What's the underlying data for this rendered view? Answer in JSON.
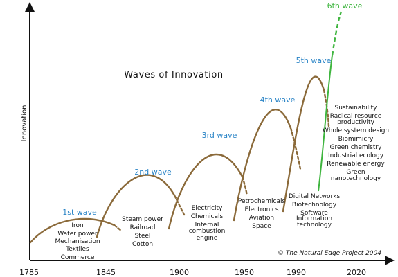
{
  "title": "Waves of Innovation",
  "axis": {
    "y_label": "Innovation",
    "x_ticks": [
      "1785",
      "1845",
      "1900",
      "1950",
      "1990",
      "2020"
    ]
  },
  "colors": {
    "curve": "#8b6a3a",
    "wave_label": "#2a84c6",
    "sixth_wave": "#3fb53f",
    "axis": "#111111"
  },
  "waves": [
    {
      "label": "1st wave",
      "items": [
        "Iron",
        "Water power",
        "Mechanisation",
        "Textiles",
        "Commerce"
      ]
    },
    {
      "label": "2nd wave",
      "items": [
        "Steam power",
        "Railroad",
        "Steel",
        "Cotton"
      ]
    },
    {
      "label": "3rd wave",
      "items": [
        "Electricity",
        "Chemicals",
        "Internal",
        "combustion",
        "engine"
      ]
    },
    {
      "label": "4th wave",
      "items": [
        "Petrochemicals",
        "Electronics",
        "Aviation",
        "Space"
      ]
    },
    {
      "label": "5th wave",
      "items": [
        "Digital Networks",
        "Biotechnology",
        "Software",
        "Information",
        "technology"
      ]
    },
    {
      "label": "6th wave",
      "items": [
        "Sustainability",
        "Radical resource",
        "productivity",
        "Whole system design",
        "Biomimicry",
        "Green chemistry",
        "Industrial ecology",
        "Renewable energy",
        "Green",
        "nanotechnology"
      ]
    }
  ],
  "credit": "© The Natural Edge Project 2004"
}
